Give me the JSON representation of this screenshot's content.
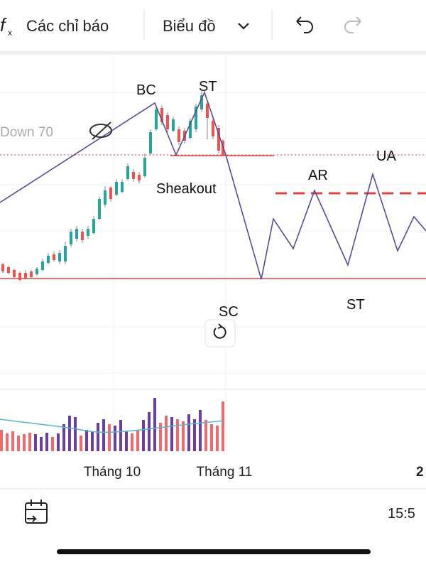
{
  "toolbar": {
    "indicators": "Các chỉ báo",
    "chart": "Biểu đồ"
  },
  "chart": {
    "indicator_label": "Down 70",
    "annotations": [
      "BC",
      "ST",
      "Sheakout",
      "AR",
      "UA",
      "SC",
      "ST"
    ],
    "x_labels": [
      "Tháng 10",
      "Tháng 11",
      "2"
    ]
  },
  "footer": {
    "time": "15:5"
  }
}
